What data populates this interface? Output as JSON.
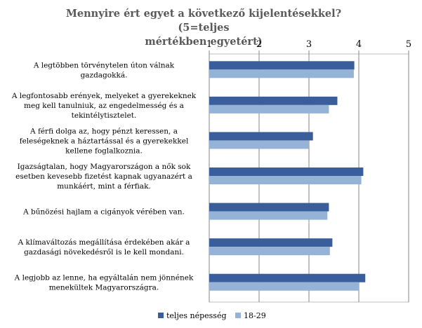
{
  "chart_data": {
    "type": "bar",
    "orientation": "horizontal",
    "title": "Mennyire ért egyet a következő kijelentésekkel? (5=teljes mértékben egyetért)",
    "title_lines": [
      "Mennyire ért egyet a következő kijelentésekkel? (5=teljes",
      "mértékben egyetért)"
    ],
    "xlim": [
      1,
      5
    ],
    "ticks": [
      1,
      2,
      3,
      4,
      5
    ],
    "axis_position": "top",
    "grid": true,
    "legend_position": "bottom",
    "categories": [
      [
        "A legtöbben törvénytelen úton válnak",
        "gazdagokká."
      ],
      [
        "A legfontosabb erények, melyeket a gyerekeknek",
        "meg kell tanulniuk, az engedelmesség és a",
        "tekintélytisztelet."
      ],
      [
        "A férfi dolga az, hogy pénzt keressen, a",
        "feleségeknek a háztartással és a gyerekekkel",
        "kellene foglalkoznia."
      ],
      [
        "Igazságtalan, hogy Magyarországon a nők sok",
        "esetben kevesebb fizetést kapnak ugyanazért a",
        "munkáért, mint a férfiak."
      ],
      [
        "A bűnözési hajlam a cigányok vérében van."
      ],
      [
        "A klímaváltozás megállítása érdekében akár a",
        "gazdasági növekedésről is le kell mondani."
      ],
      [
        "A legjobb az lenne, ha egyáltalán nem jönnének",
        "menekültek Magyarországra."
      ]
    ],
    "series": [
      {
        "name": "teljes népesség",
        "color": "#3a5d9c",
        "values": [
          3.91,
          3.57,
          3.08,
          4.09,
          3.4,
          3.47,
          4.13
        ]
      },
      {
        "name": "18-29",
        "color": "#95b3d7",
        "values": [
          3.9,
          3.4,
          3.0,
          4.05,
          3.37,
          3.42,
          4.0
        ]
      }
    ]
  }
}
